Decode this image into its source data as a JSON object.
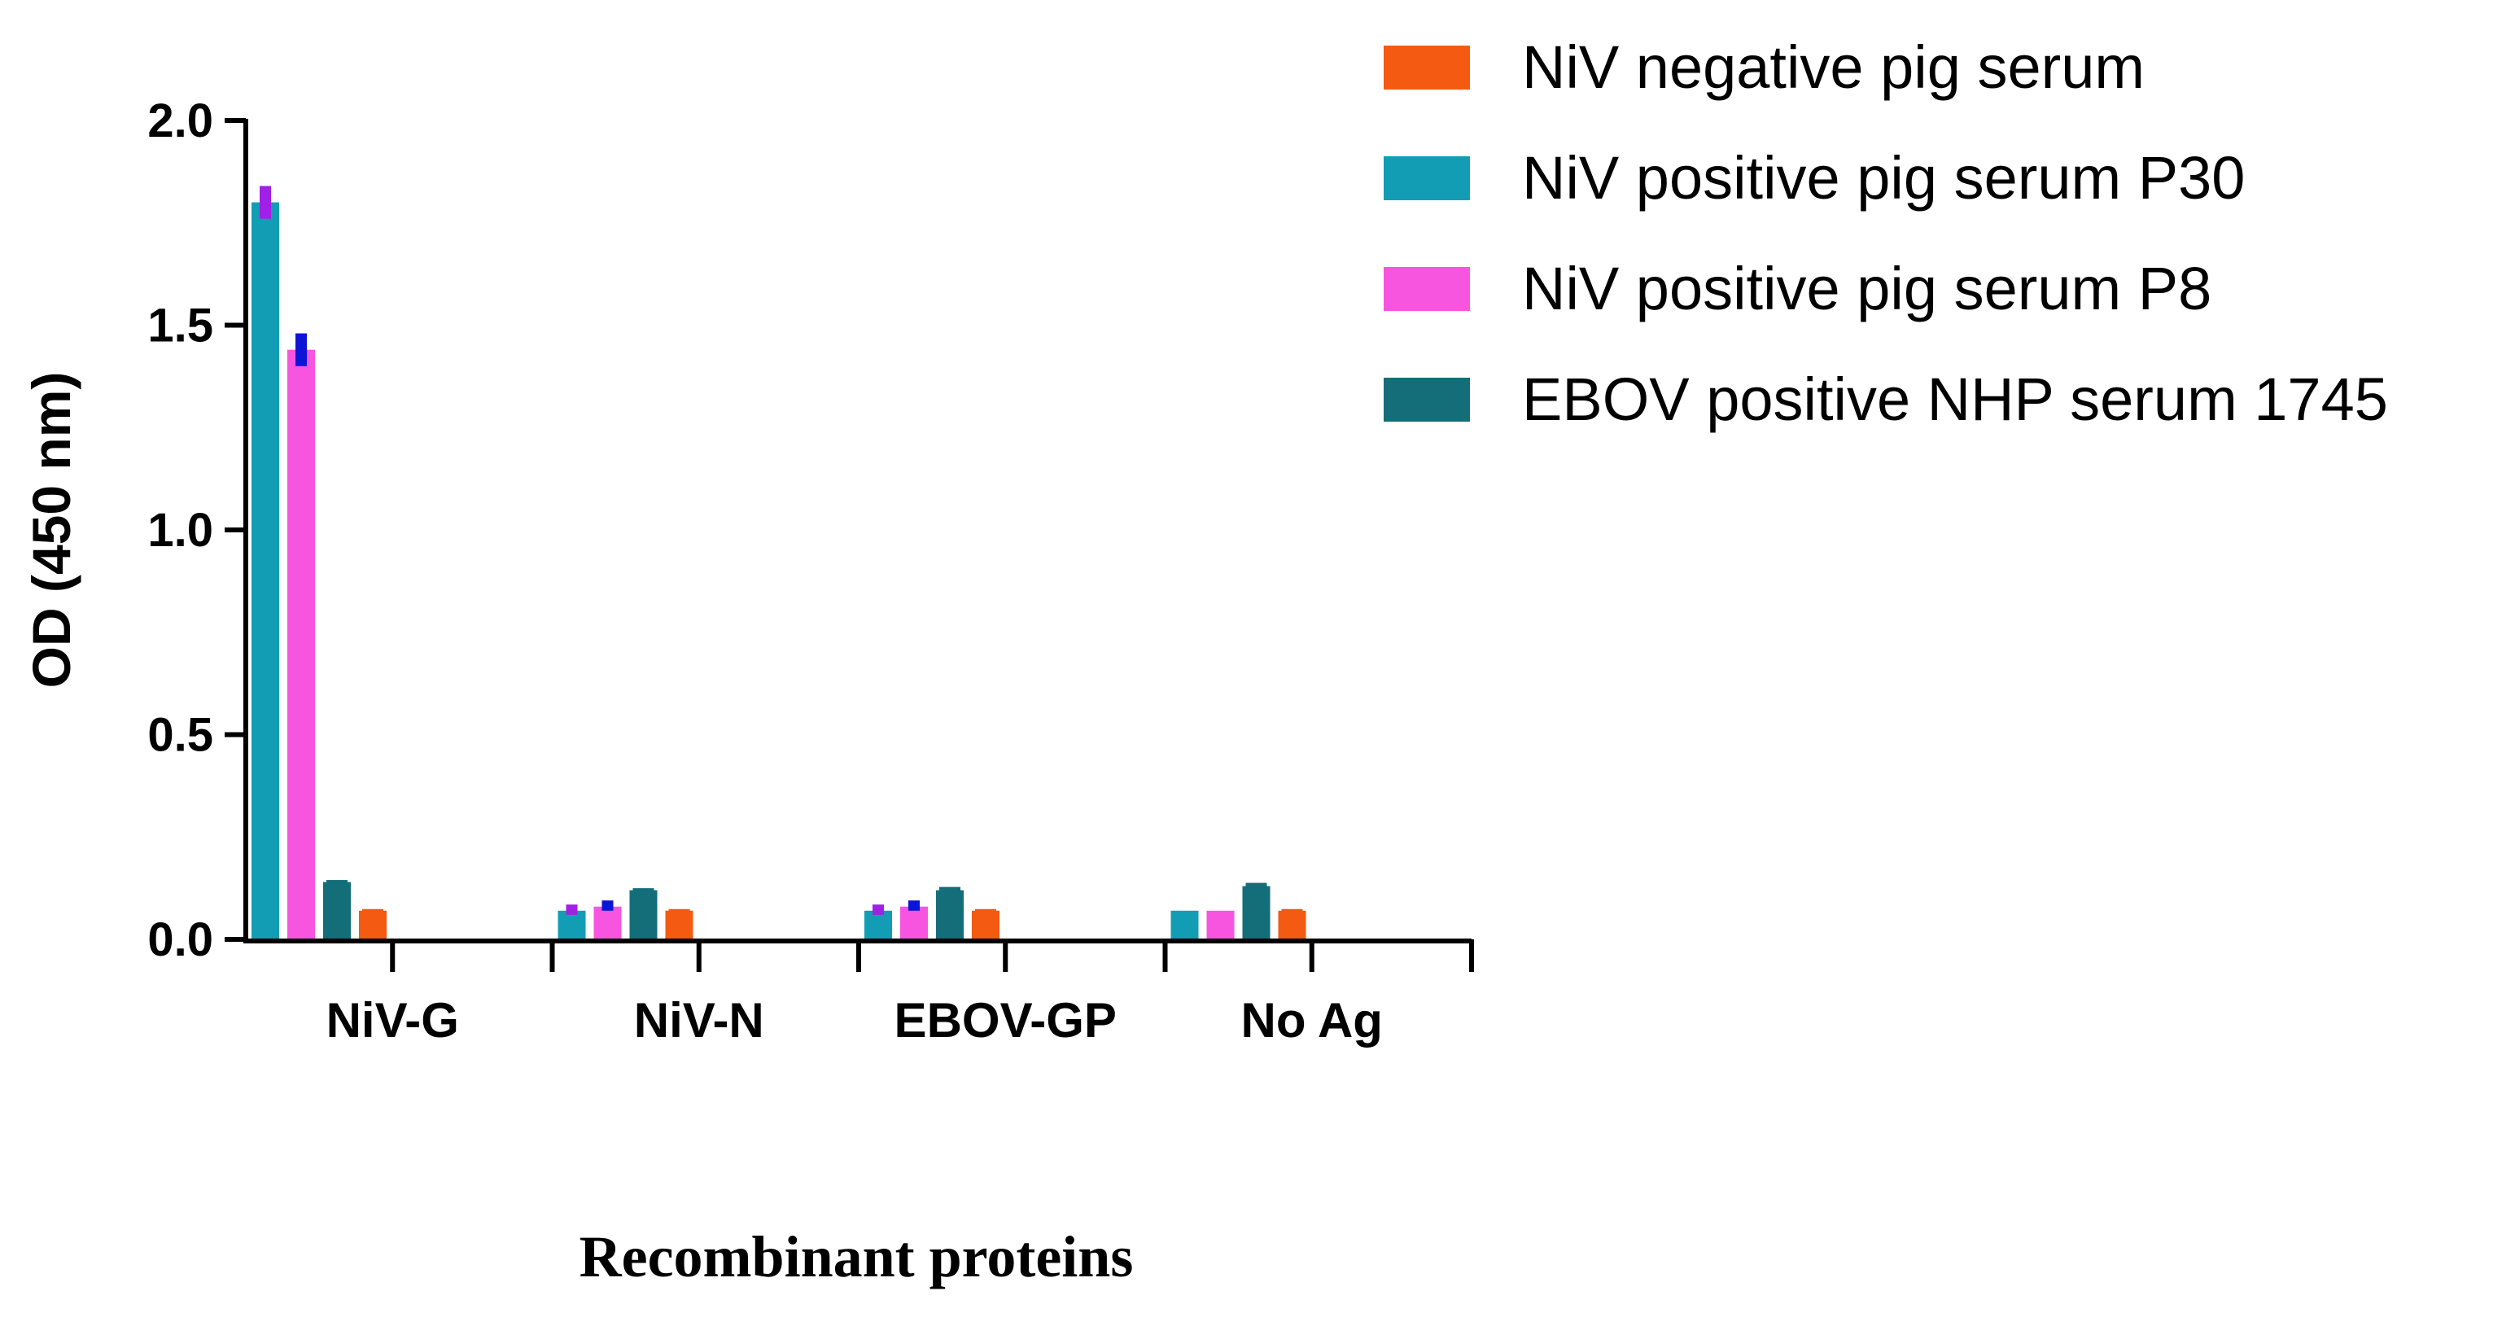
{
  "chart_data": {
    "type": "bar",
    "title": "",
    "ylabel": "OD (450 nm)",
    "xlabel": "Recombinant proteins",
    "ylim": [
      0,
      2.0
    ],
    "yticks": [
      0.0,
      0.5,
      1.0,
      1.5,
      2.0
    ],
    "ytick_labels": [
      "0.0",
      "0.5",
      "1.0",
      "1.5",
      "2.0"
    ],
    "categories": [
      "NiV-G",
      "NiV-N",
      "EBOV-GP",
      "No Ag"
    ],
    "legend_position": "top-right",
    "legend_order": [
      3,
      0,
      1,
      2
    ],
    "series": [
      {
        "name": "NiV positive pig serum P30",
        "color": "#139DB5",
        "values": [
          1.8,
          0.07,
          0.07,
          0.07
        ],
        "errors": [
          0.0,
          0.0,
          0.0,
          0.0
        ],
        "error_color": "#139DB5"
      },
      {
        "name": "NiV positive pig serum P8",
        "color": "#F755DF",
        "values": [
          1.44,
          0.08,
          0.08,
          0.07
        ],
        "errors": [
          0.0,
          0.0,
          0.0,
          0.0
        ],
        "error_color": "#F755DF"
      },
      {
        "name": "EBOV positive NHP serum 1745",
        "color": "#136E7A",
        "values": [
          0.14,
          0.12,
          0.12,
          0.13
        ],
        "errors": [
          0.005,
          0.005,
          0.008,
          0.008
        ],
        "error_color": "#136E7A"
      },
      {
        "name": "NiV negative pig serum",
        "color": "#F45A12",
        "values": [
          0.07,
          0.07,
          0.07,
          0.07
        ],
        "errors": [
          0.004,
          0.004,
          0.004,
          0.004
        ],
        "error_color": "#F45A12"
      }
    ],
    "error_markers": [
      {
        "category": "NiV-G",
        "series": "NiV positive pig serum P30",
        "value": 1.8,
        "low": 1.76,
        "high": 1.84,
        "color": "#A020E6"
      },
      {
        "category": "NiV-G",
        "series": "NiV positive pig serum P8",
        "value": 1.44,
        "low": 1.4,
        "high": 1.48,
        "color": "#0E14D6"
      },
      {
        "category": "NiV-N",
        "series": "NiV positive pig serum P30",
        "value": 0.07,
        "low": 0.06,
        "high": 0.085,
        "color": "#A020E6"
      },
      {
        "category": "NiV-N",
        "series": "NiV positive pig serum P8",
        "value": 0.08,
        "low": 0.07,
        "high": 0.095,
        "color": "#0E14D6"
      },
      {
        "category": "EBOV-GP",
        "series": "NiV positive pig serum P30",
        "value": 0.07,
        "low": 0.06,
        "high": 0.085,
        "color": "#A020E6"
      },
      {
        "category": "EBOV-GP",
        "series": "NiV positive pig serum P8",
        "value": 0.08,
        "low": 0.07,
        "high": 0.095,
        "color": "#0E14D6"
      }
    ]
  }
}
